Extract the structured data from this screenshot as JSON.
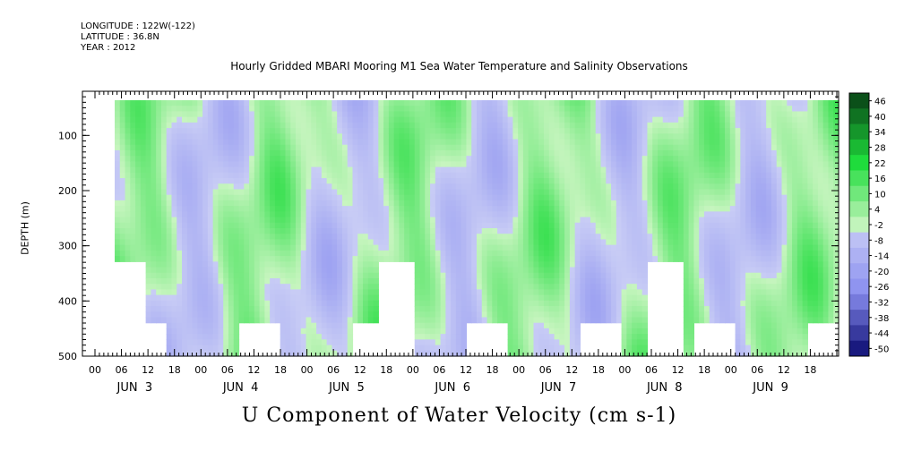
{
  "header": {
    "longitude": "LONGITUDE : 122W(-122)",
    "latitude": "LATITUDE : 36.8N",
    "year": "YEAR : 2012"
  },
  "chart_data": {
    "type": "heatmap",
    "title": "Hourly Gridded MBARI Mooring M1 Sea Water Temperature and Salinity Observations",
    "xlabel": "U Component of Water Velocity (cm s-1)",
    "ylabel": "DEPTH (m)",
    "x_hour_ticks": [
      "00",
      "06",
      "12",
      "18",
      "00",
      "06",
      "12",
      "18",
      "00",
      "06",
      "12",
      "18",
      "00",
      "06",
      "12",
      "18",
      "00",
      "06",
      "12",
      "18",
      "00",
      "06",
      "12",
      "18",
      "00",
      "06",
      "12",
      "18"
    ],
    "x_day_labels": [
      "JUN  3",
      "JUN  4",
      "JUN  5",
      "JUN  6",
      "JUN  7",
      "JUN  8",
      "JUN  9"
    ],
    "y_ticks": [
      100,
      200,
      300,
      400,
      500
    ],
    "ylim": [
      500,
      20
    ],
    "colorbar": {
      "levels": [
        46,
        40,
        34,
        28,
        22,
        16,
        10,
        4,
        -2,
        -8,
        -14,
        -20,
        -26,
        -32,
        -38,
        -44,
        -50
      ],
      "range": [
        -50,
        50
      ]
    },
    "colors": {
      "pos_light": "#c8f5c0",
      "pos_mid": "#1fdc3c",
      "pos_dark": "#0a4a18",
      "neg_light": "#c8ccf5",
      "neg_mid": "#8a8ff0",
      "neg_dark": "#0a0a70"
    }
  }
}
